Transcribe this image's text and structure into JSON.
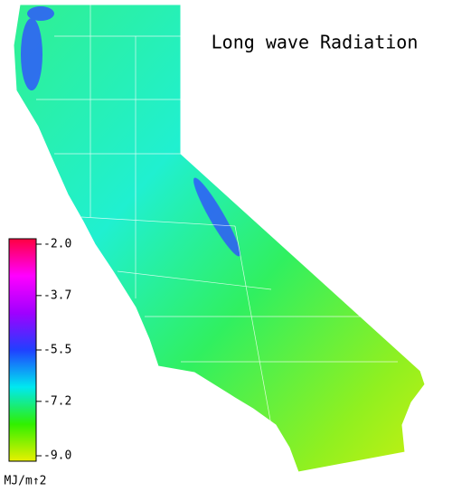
{
  "title": "Long wave Radiation",
  "colorbar": {
    "lim": [
      -9.0,
      -2.0
    ],
    "ticks": [
      {
        "value": -2.0,
        "label": "-2.0"
      },
      {
        "value": -3.7,
        "label": "-3.7"
      },
      {
        "value": -5.5,
        "label": "-5.5"
      },
      {
        "value": -7.2,
        "label": "-7.2"
      },
      {
        "value": -9.0,
        "label": "-9.0"
      }
    ],
    "colors": [
      "#e8f000",
      "#30f000",
      "#00e8f0",
      "#2040ff",
      "#a000ff",
      "#ff00ff",
      "#ff0040"
    ],
    "unit": "MJ/m↑2"
  }
}
